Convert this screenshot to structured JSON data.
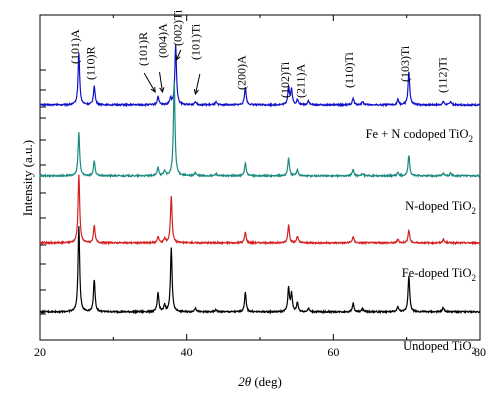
{
  "chart_data": {
    "type": "line",
    "xlabel_theta": "2θ",
    "xlabel_unit": " (deg)",
    "ylabel": "Intensity (a.u.)",
    "xlim": [
      20,
      80
    ],
    "xticks": [
      "20",
      "40",
      "60",
      "80"
    ],
    "xticks_values": [
      20,
      40,
      60,
      80
    ],
    "grid": false,
    "series": [
      {
        "name_main": "Fe + N codoped TiO",
        "name_sub": "2",
        "color": "#1010c8",
        "baseline": 0.5,
        "peaks": [
          [
            25.3,
            12.0
          ],
          [
            27.4,
            4.5
          ],
          [
            36.1,
            2.0
          ],
          [
            37.8,
            1.5
          ],
          [
            38.5,
            14.0
          ],
          [
            41.2,
            0.8
          ],
          [
            44.0,
            0.6
          ],
          [
            48.0,
            4.2
          ],
          [
            53.9,
            4.2
          ],
          [
            54.3,
            3.5
          ],
          [
            55.1,
            1.2
          ],
          [
            56.6,
            1.0
          ],
          [
            62.7,
            1.5
          ],
          [
            64.0,
            0.8
          ],
          [
            68.8,
            1.2
          ],
          [
            70.3,
            7.8
          ],
          [
            75.0,
            0.8
          ],
          [
            76.0,
            0.8
          ]
        ]
      },
      {
        "name_main": "N-doped TiO",
        "name_sub": "2",
        "color": "#1a8a80",
        "baseline": 0.5,
        "peaks": [
          [
            25.3,
            10.0
          ],
          [
            27.4,
            3.5
          ],
          [
            36.1,
            2.0
          ],
          [
            37.0,
            1.2
          ],
          [
            38.3,
            22.0
          ],
          [
            41.2,
            0.8
          ],
          [
            44.0,
            0.5
          ],
          [
            48.0,
            3.0
          ],
          [
            53.9,
            4.2
          ],
          [
            55.1,
            1.5
          ],
          [
            62.7,
            1.5
          ],
          [
            64.0,
            0.6
          ],
          [
            68.8,
            0.8
          ],
          [
            70.3,
            4.8
          ],
          [
            75.0,
            0.6
          ],
          [
            76.0,
            0.6
          ]
        ]
      },
      {
        "name_main": "Fe-doped TiO",
        "name_sub": "2",
        "color": "#d42020",
        "baseline": 0.5,
        "peaks": [
          [
            25.3,
            16.0
          ],
          [
            27.4,
            4.0
          ],
          [
            36.1,
            1.5
          ],
          [
            37.0,
            1.0
          ],
          [
            37.9,
            11.0
          ],
          [
            48.0,
            2.5
          ],
          [
            53.9,
            4.2
          ],
          [
            55.1,
            1.5
          ],
          [
            62.7,
            1.5
          ],
          [
            68.8,
            0.8
          ],
          [
            70.3,
            3.0
          ],
          [
            75.0,
            0.8
          ]
        ]
      },
      {
        "name_main": "Undoped TiO",
        "name_sub": "2",
        "color": "#000000",
        "baseline": 0.5,
        "peaks": [
          [
            25.3,
            20.0
          ],
          [
            27.4,
            7.5
          ],
          [
            36.1,
            4.5
          ],
          [
            37.0,
            1.5
          ],
          [
            37.9,
            15.0
          ],
          [
            41.2,
            1.0
          ],
          [
            44.0,
            0.5
          ],
          [
            48.0,
            4.5
          ],
          [
            53.9,
            5.5
          ],
          [
            54.3,
            4.2
          ],
          [
            55.1,
            2.2
          ],
          [
            56.6,
            0.8
          ],
          [
            62.7,
            2.0
          ],
          [
            64.0,
            0.8
          ],
          [
            68.8,
            1.2
          ],
          [
            70.3,
            8.5
          ],
          [
            75.0,
            1.0
          ]
        ]
      }
    ],
    "annotations": [
      {
        "text": "(101)A",
        "x": 25.3
      },
      {
        "text": "(110)R",
        "x": 27.4
      },
      {
        "text": "(101)R",
        "x": 36.1
      },
      {
        "text": "(004)A",
        "x": 37.8
      },
      {
        "text": "(002)Ti",
        "x": 38.5
      },
      {
        "text": "(101)Ti",
        "x": 41.2
      },
      {
        "text": "(200)A",
        "x": 48.0
      },
      {
        "text": "(102)Ti",
        "x": 53.0
      },
      {
        "text": "(211)A",
        "x": 54.4
      },
      {
        "text": "(110)Ti",
        "x": 62.7
      },
      {
        "text": "(103)Ti",
        "x": 70.3
      },
      {
        "text": "(112)Ti",
        "x": 75.0
      }
    ]
  }
}
